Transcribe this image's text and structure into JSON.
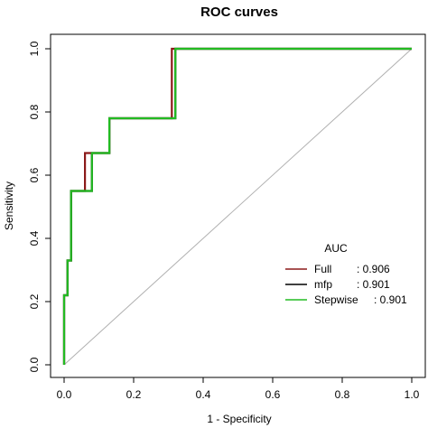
{
  "chart_data": {
    "type": "line",
    "title": "ROC curves",
    "xlabel": "1 - Specificity",
    "ylabel": "Sensitivity",
    "xlim": [
      0,
      1
    ],
    "ylim": [
      0,
      1
    ],
    "xticks": [
      "0.0",
      "0.2",
      "0.4",
      "0.6",
      "0.8",
      "1.0"
    ],
    "yticks": [
      "0.0",
      "0.2",
      "0.4",
      "0.6",
      "0.8",
      "1.0"
    ],
    "grid": false,
    "reference_line": {
      "x": [
        0,
        1
      ],
      "y": [
        0,
        1
      ],
      "color": "#b0b0b0"
    },
    "legend": {
      "title": "AUC",
      "placement": "bottom-right",
      "entries": [
        {
          "label": "Full",
          "value": ": 0.906",
          "color": "#8b1a1a"
        },
        {
          "label": "mfp",
          "value": ": 0.901",
          "color": "#000000"
        },
        {
          "label": "Stepwise",
          "value": ": 0.901",
          "color": "#22bb22"
        }
      ]
    },
    "series": [
      {
        "name": "Full",
        "color": "#8b1a1a",
        "x": [
          0,
          0,
          0.01,
          0.01,
          0.02,
          0.02,
          0.06,
          0.06,
          0.08,
          0.08,
          0.13,
          0.13,
          0.31,
          0.31,
          1.0
        ],
        "y": [
          0,
          0.22,
          0.22,
          0.33,
          0.33,
          0.55,
          0.55,
          0.67,
          0.67,
          0.67,
          0.67,
          0.78,
          0.78,
          1.0,
          1.0
        ]
      },
      {
        "name": "mfp",
        "color": "#000000",
        "x": [
          0,
          0,
          0.01,
          0.01,
          0.02,
          0.02,
          0.07,
          0.07,
          0.08,
          0.08,
          0.13,
          0.13,
          0.32,
          0.32,
          1.0
        ],
        "y": [
          0,
          0.22,
          0.22,
          0.33,
          0.33,
          0.55,
          0.55,
          0.55,
          0.55,
          0.67,
          0.67,
          0.78,
          0.78,
          1.0,
          1.0
        ]
      },
      {
        "name": "Stepwise",
        "color": "#22bb22",
        "x": [
          0,
          0,
          0.01,
          0.01,
          0.02,
          0.02,
          0.07,
          0.07,
          0.08,
          0.08,
          0.13,
          0.13,
          0.32,
          0.32,
          1.0
        ],
        "y": [
          0,
          0.22,
          0.22,
          0.33,
          0.33,
          0.55,
          0.55,
          0.55,
          0.55,
          0.67,
          0.67,
          0.78,
          0.78,
          1.0,
          1.0
        ]
      }
    ]
  }
}
